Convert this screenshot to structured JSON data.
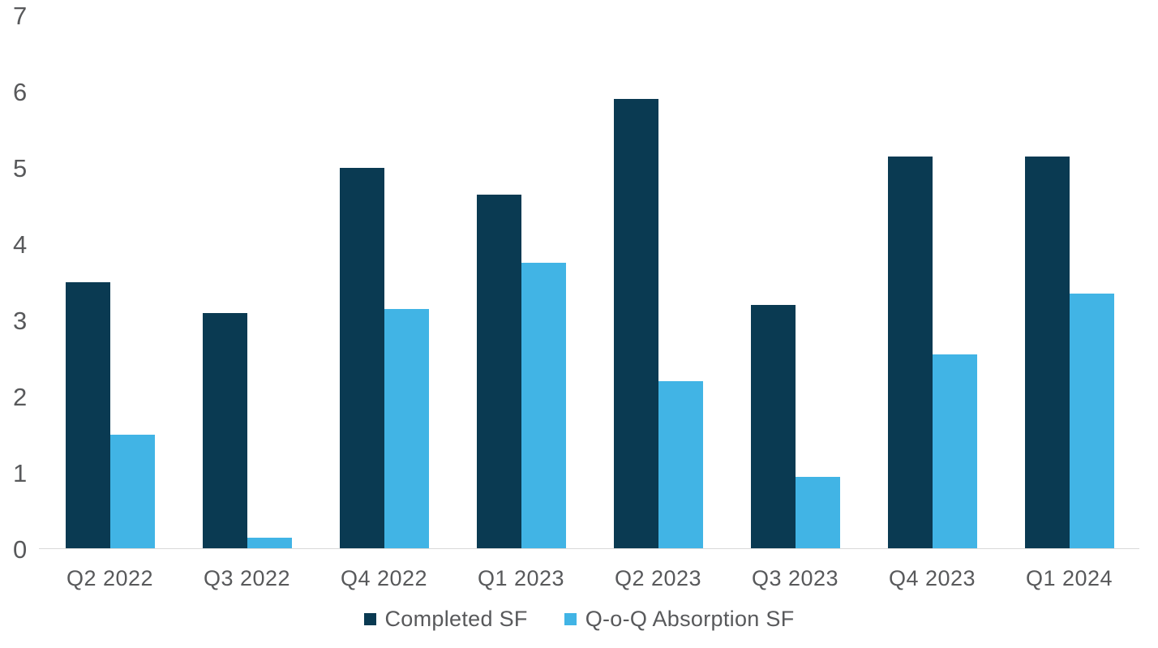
{
  "chart_data": {
    "type": "bar",
    "title": "",
    "xlabel": "",
    "ylabel": "",
    "categories": [
      "Q2 2022",
      "Q3 2022",
      "Q4 2022",
      "Q1 2023",
      "Q2 2023",
      "Q3 2023",
      "Q4 2023",
      "Q1 2024"
    ],
    "series": [
      {
        "name": "Completed SF",
        "color": "#0A3A52",
        "values": [
          3.5,
          3.1,
          5.0,
          4.65,
          5.9,
          3.2,
          5.15,
          5.15
        ]
      },
      {
        "name": "Q-o-Q Absorption SF",
        "color": "#41B4E5",
        "values": [
          1.5,
          0.15,
          3.15,
          3.75,
          2.2,
          0.95,
          2.55,
          3.35
        ]
      }
    ],
    "ylim": [
      0,
      7
    ],
    "yticks": [
      0,
      1,
      2,
      3,
      4,
      5,
      6,
      7
    ],
    "grid": false,
    "legend_position": "bottom",
    "text_color": "#58595B",
    "axis_line_color": "#D9D9D9",
    "background": "#FFFFFF"
  }
}
